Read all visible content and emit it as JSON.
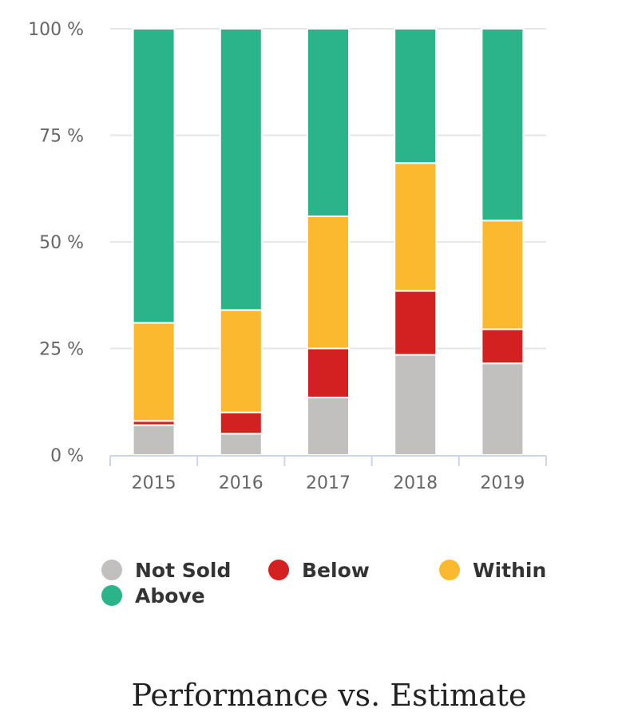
{
  "chart_data": {
    "type": "bar",
    "stacked": true,
    "title": "Performance vs. Estimate",
    "xlabel": "",
    "ylabel": "",
    "categories": [
      "2015",
      "2016",
      "2017",
      "2018",
      "2019"
    ],
    "ylim": [
      0,
      100
    ],
    "y_ticks": [
      0,
      25,
      50,
      75,
      100
    ],
    "y_tick_labels": [
      "0 %",
      "25 %",
      "50 %",
      "75 %",
      "100 %"
    ],
    "grid": true,
    "legend_position": "bottom",
    "series": [
      {
        "name": "Not Sold",
        "color": "#c2bfbf",
        "values": [
          7,
          5,
          13.5,
          23.5,
          21.5
        ]
      },
      {
        "name": "Below",
        "color": "#d32021",
        "values": [
          1,
          5,
          11.5,
          15,
          8
        ]
      },
      {
        "name": "Within",
        "color": "#fbb92f",
        "values": [
          23,
          24,
          31,
          30,
          25.5
        ]
      },
      {
        "name": "Above",
        "color": "#2bb38a",
        "values": [
          69,
          66,
          44,
          31.5,
          45
        ]
      }
    ]
  },
  "axis_colors": {
    "grid": "#e6e6e6",
    "axis": "#ccd6eb"
  }
}
